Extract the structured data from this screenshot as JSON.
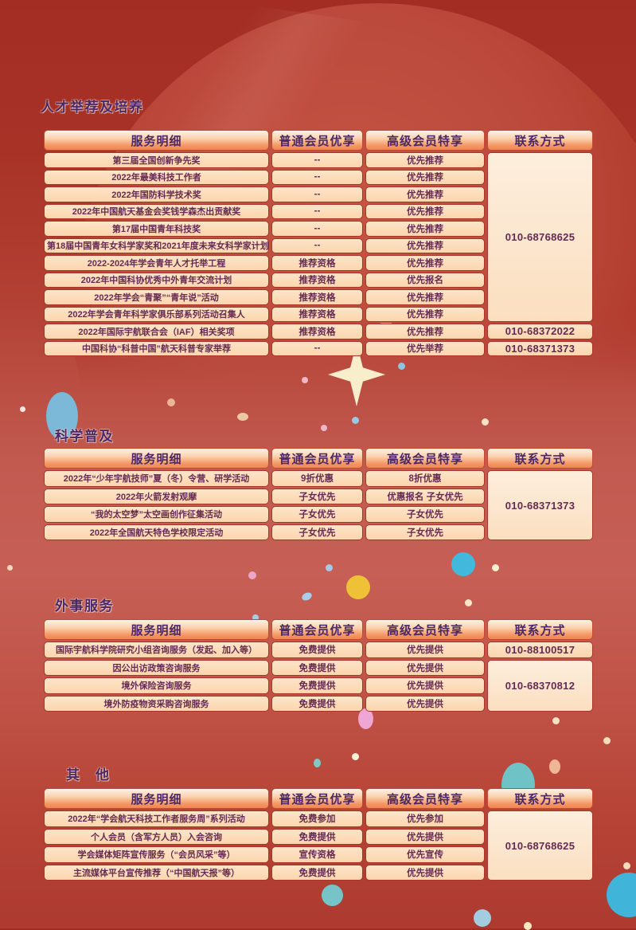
{
  "poster": {
    "theme": {
      "bg_top": "#a32d23",
      "bg_mid": "#c25a50",
      "bg_bottom": "#ad3a30",
      "header_orange": "#ef8550",
      "cell_bg": "#fbd6ad",
      "cell_bg_light": "#fbdfc0",
      "cell_border": "#a93527",
      "title_color": "#4b2767",
      "text_color": "#662a52",
      "star": "#f9eecb"
    },
    "sections": [
      {
        "title": "人才举荐及培养",
        "headers": [
          "服务明细",
          "普通会员优享",
          "高级会员特享",
          "联系方式"
        ],
        "rows": [
          {
            "service": "第三届全国创新争先奖",
            "basic": "--",
            "premium": "优先推荐"
          },
          {
            "service": "2022年最美科技工作者",
            "basic": "--",
            "premium": "优先推荐"
          },
          {
            "service": "2022年国防科学技术奖",
            "basic": "--",
            "premium": "优先推荐"
          },
          {
            "service": "2022年中国航天基金会奖钱学森杰出贡献奖",
            "basic": "--",
            "premium": "优先推荐"
          },
          {
            "service": "第17届中国青年科技奖",
            "basic": "--",
            "premium": "优先推荐"
          },
          {
            "service": "第18届中国青年女科学家奖和2021年度未来女科学家计划",
            "basic": "--",
            "premium": "优先推荐"
          },
          {
            "service": "2022-2024年学会青年人才托举工程",
            "basic": "推荐资格",
            "premium": "优先推荐"
          },
          {
            "service": "2022年中国科协优秀中外青年交流计划",
            "basic": "推荐资格",
            "premium": "优先报名"
          },
          {
            "service": "2022年学会“青聚”“青年说”活动",
            "basic": "推荐资格",
            "premium": "优先推荐"
          },
          {
            "service": "2022年学会青年科学家俱乐部系列活动召集人",
            "basic": "推荐资格",
            "premium": "优先推荐"
          },
          {
            "service": "2022年国际宇航联合会（IAF）相关奖项",
            "basic": "推荐资格",
            "premium": "优先推荐"
          },
          {
            "service": "中国科协“科普中国”航天科普专家举荐",
            "basic": "--",
            "premium": "优先举荐"
          }
        ],
        "contacts": [
          {
            "phone": "010-68768625",
            "start": 0,
            "span": 10
          },
          {
            "phone": "010-68372022",
            "start": 10,
            "span": 1
          },
          {
            "phone": "010-68371373",
            "start": 11,
            "span": 1
          }
        ]
      },
      {
        "title": "科学普及",
        "headers": [
          "服务明细",
          "普通会员优享",
          "高级会员特享",
          "联系方式"
        ],
        "rows": [
          {
            "service": "2022年“少年宇航技师”夏（冬）令营、研学活动",
            "basic": "9折优惠",
            "premium": "8折优惠"
          },
          {
            "service": "2022年火箭发射观摩",
            "basic": "子女优先",
            "premium": "优惠报名 子女优先"
          },
          {
            "service": "“我的太空梦”太空画创作征集活动",
            "basic": "子女优先",
            "premium": "子女优先"
          },
          {
            "service": "2022年全国航天特色学校限定活动",
            "basic": "子女优先",
            "premium": "子女优先"
          }
        ],
        "contacts": [
          {
            "phone": "010-68371373",
            "start": 0,
            "span": 4
          }
        ]
      },
      {
        "title": "外事服务",
        "headers": [
          "服务明细",
          "普通会员优享",
          "高级会员特享",
          "联系方式"
        ],
        "rows": [
          {
            "service": "国际宇航科学院研究小组咨询服务（发起、加入等）",
            "basic": "免费提供",
            "premium": "优先提供"
          },
          {
            "service": "因公出访政策咨询服务",
            "basic": "免费提供",
            "premium": "优先提供"
          },
          {
            "service": "境外保险咨询服务",
            "basic": "免费提供",
            "premium": "优先提供"
          },
          {
            "service": "境外防疫物资采购咨询服务",
            "basic": "免费提供",
            "premium": "优先提供"
          }
        ],
        "contacts": [
          {
            "phone": "010-88100517",
            "start": 0,
            "span": 1
          },
          {
            "phone": "010-68370812",
            "start": 1,
            "span": 3
          }
        ]
      },
      {
        "title": "其　他",
        "headers": [
          "服务明细",
          "普通会员优享",
          "高级会员特享",
          "联系方式"
        ],
        "rows": [
          {
            "service": "2022年“学会航天科技工作者服务周”系列活动",
            "basic": "免费参加",
            "premium": "优先参加"
          },
          {
            "service": "个人会员（含军方人员）入会咨询",
            "basic": "免费提供",
            "premium": "优先提供"
          },
          {
            "service": "学会媒体矩阵宣传服务（“会员风采”等）",
            "basic": "宣传资格",
            "premium": "优先宣传"
          },
          {
            "service": "主流媒体平台宣传推荐（“中国航天报”等）",
            "basic": "免费提供",
            "premium": "优先提供"
          }
        ],
        "contacts": [
          {
            "phone": "010-68768625",
            "start": 0,
            "span": 4
          }
        ]
      }
    ]
  }
}
